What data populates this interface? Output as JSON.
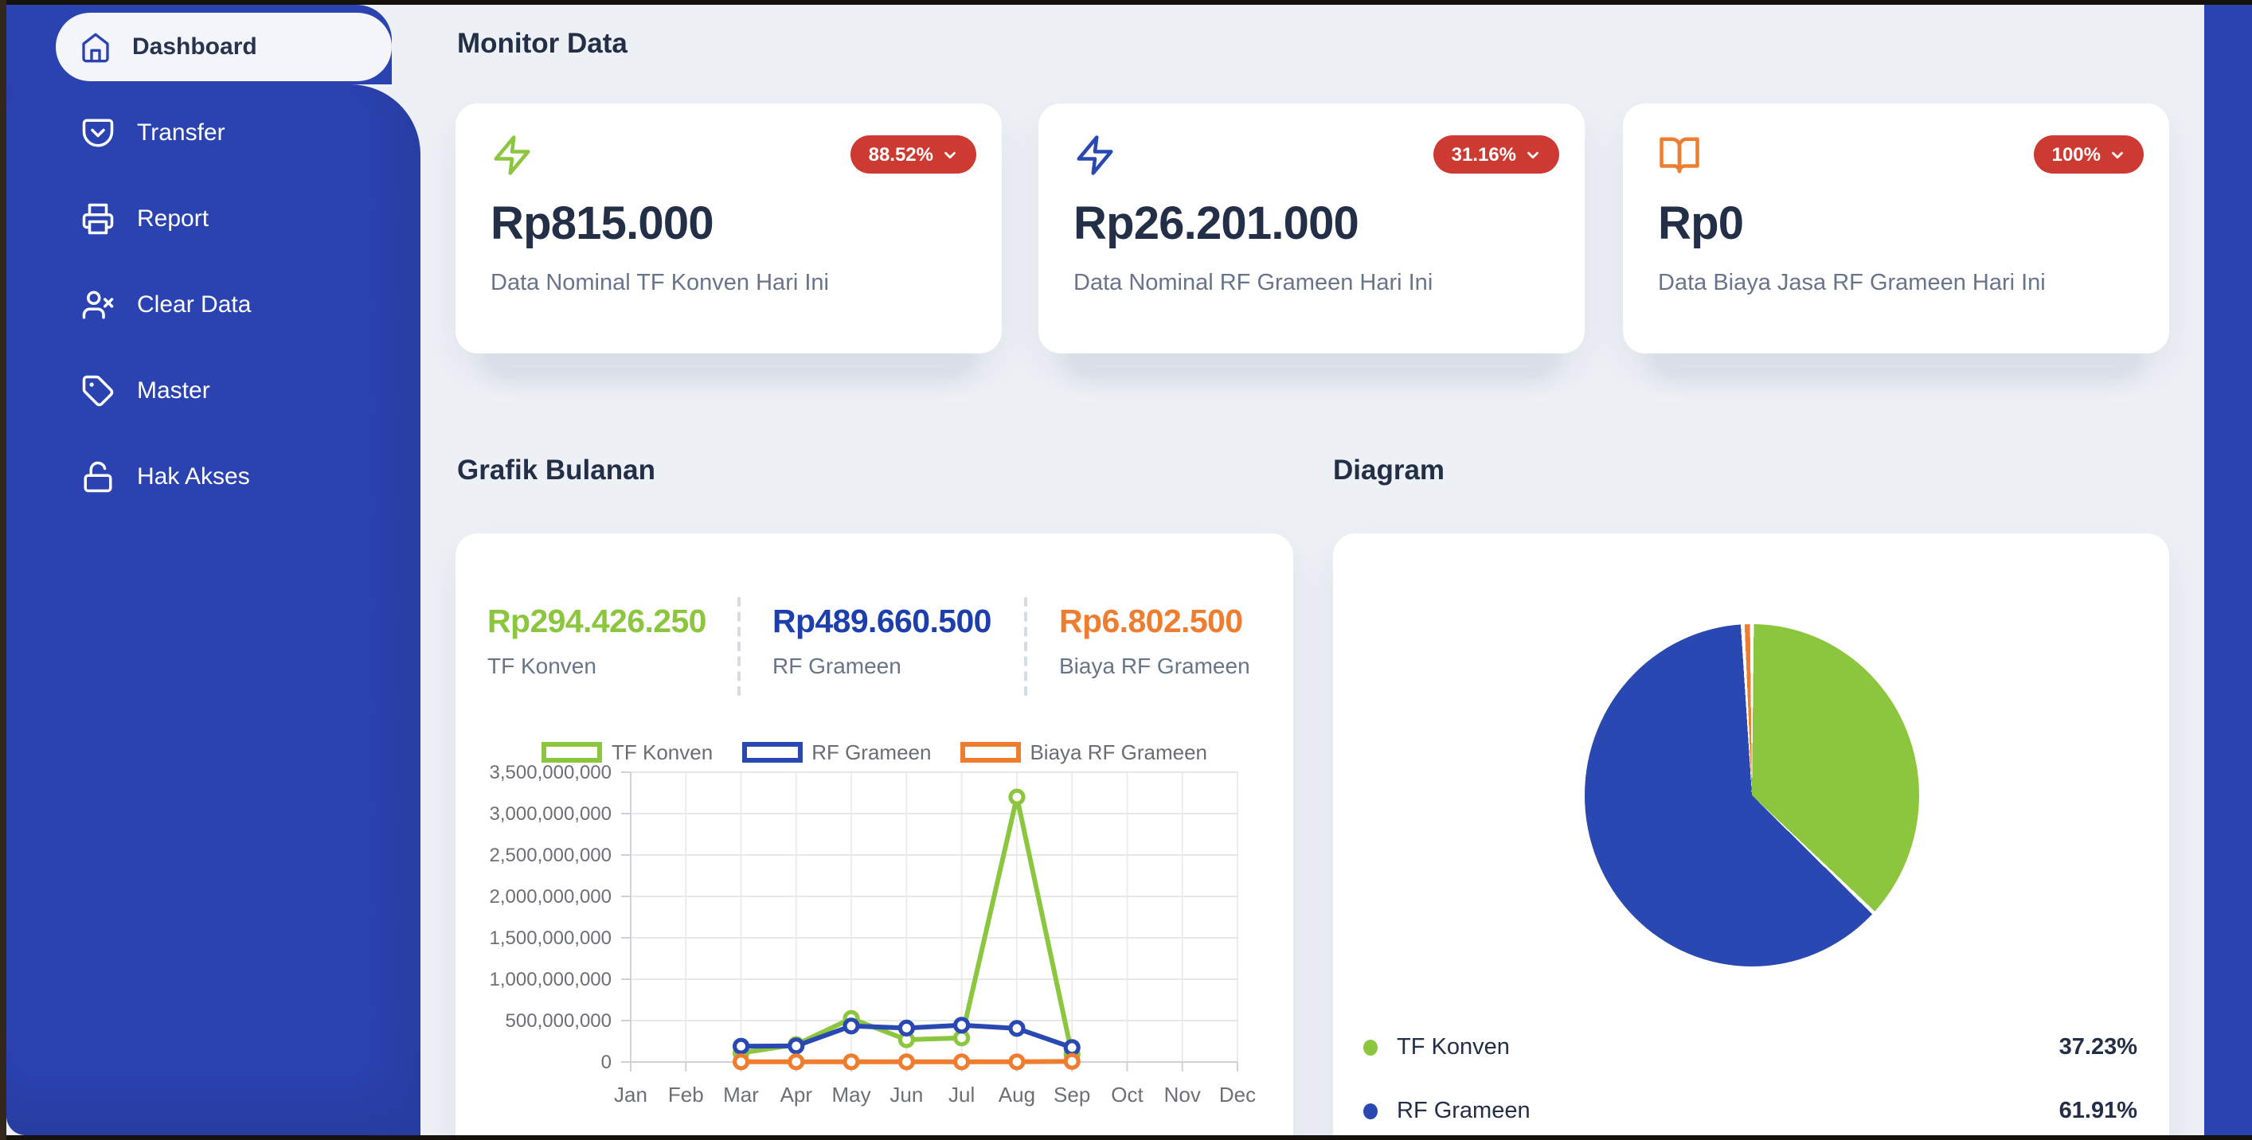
{
  "colors": {
    "sidebar_blue": "#2B43B1",
    "badge_red": "#CC3A31",
    "green": "#8CC63E",
    "blue": "#2948B1",
    "orange": "#EE7D30",
    "navy": "#232E47",
    "grey_text": "#68748A",
    "panel_bg": "#EDF0F5",
    "under_card": "#E2E7EF"
  },
  "sidebar": {
    "items": [
      {
        "label": "Dashboard",
        "icon": "home",
        "active": true
      },
      {
        "label": "Transfer",
        "icon": "pocket"
      },
      {
        "label": "Report",
        "icon": "printer"
      },
      {
        "label": "Clear Data",
        "icon": "user-x"
      },
      {
        "label": "Master",
        "icon": "tag"
      },
      {
        "label": "Hak Akses",
        "icon": "lock-open"
      }
    ]
  },
  "header": {
    "title": "Monitor Data"
  },
  "monitor_cards": [
    {
      "icon": "zap",
      "icon_color": "#8CC63E",
      "badge": "88.52%",
      "value": "Rp815.000",
      "label": "Data Nominal TF Konven Hari Ini"
    },
    {
      "icon": "zap",
      "icon_color": "#2948B1",
      "badge": "31.16%",
      "value": "Rp26.201.000",
      "label": "Data Nominal RF Grameen Hari Ini"
    },
    {
      "icon": "book-open",
      "icon_color": "#EE7D30",
      "badge": "100%",
      "value": "Rp0",
      "label": "Data Biaya Jasa RF Grameen Hari Ini"
    }
  ],
  "sections": {
    "chart": "Grafik Bulanan",
    "diagram": "Diagram"
  },
  "chart_summary": [
    {
      "value": "Rp294.426.250",
      "label": "TF Konven",
      "color": "#8CC63E"
    },
    {
      "value": "Rp489.660.500",
      "label": "RF Grameen",
      "color": "#1D3FAE"
    },
    {
      "value": "Rp6.802.500",
      "label": "Biaya RF Grameen",
      "color": "#EE7D30"
    }
  ],
  "chart_data": [
    {
      "type": "line",
      "title": "Grafik Bulanan",
      "x": [
        "Jan",
        "Feb",
        "Mar",
        "Apr",
        "May",
        "Jun",
        "Jul",
        "Aug",
        "Sep",
        "Oct",
        "Nov",
        "Dec"
      ],
      "ylim": [
        0,
        3500000000
      ],
      "ytick_step": 500000000,
      "grid": true,
      "legend_position": "top",
      "series": [
        {
          "name": "TF Konven",
          "color": "#8CC63E",
          "values": [
            null,
            null,
            110000000,
            210000000,
            525000000,
            270000000,
            290000000,
            3200000000,
            90000000,
            null,
            null,
            null
          ]
        },
        {
          "name": "RF Grameen",
          "color": "#2948B1",
          "values": [
            null,
            null,
            190000000,
            195000000,
            435000000,
            410000000,
            445000000,
            405000000,
            175000000,
            null,
            null,
            null
          ]
        },
        {
          "name": "Biaya RF Grameen",
          "color": "#EE7D30",
          "values": [
            null,
            null,
            1000000,
            1000000,
            1000000,
            1000000,
            1000000,
            1000000,
            6800000,
            null,
            null,
            null
          ]
        }
      ]
    },
    {
      "type": "pie",
      "title": "Diagram",
      "labels": [
        "TF Konven",
        "RF Grameen",
        "Biaya RF Grameen"
      ],
      "values": [
        37.23,
        61.91,
        0.86
      ],
      "colors": [
        "#8CC63E",
        "#2948B1",
        "#EE7D30"
      ],
      "legend": [
        {
          "label": "TF Konven",
          "percent": "37.23%"
        },
        {
          "label": "RF Grameen",
          "percent": "61.91%"
        }
      ]
    }
  ]
}
